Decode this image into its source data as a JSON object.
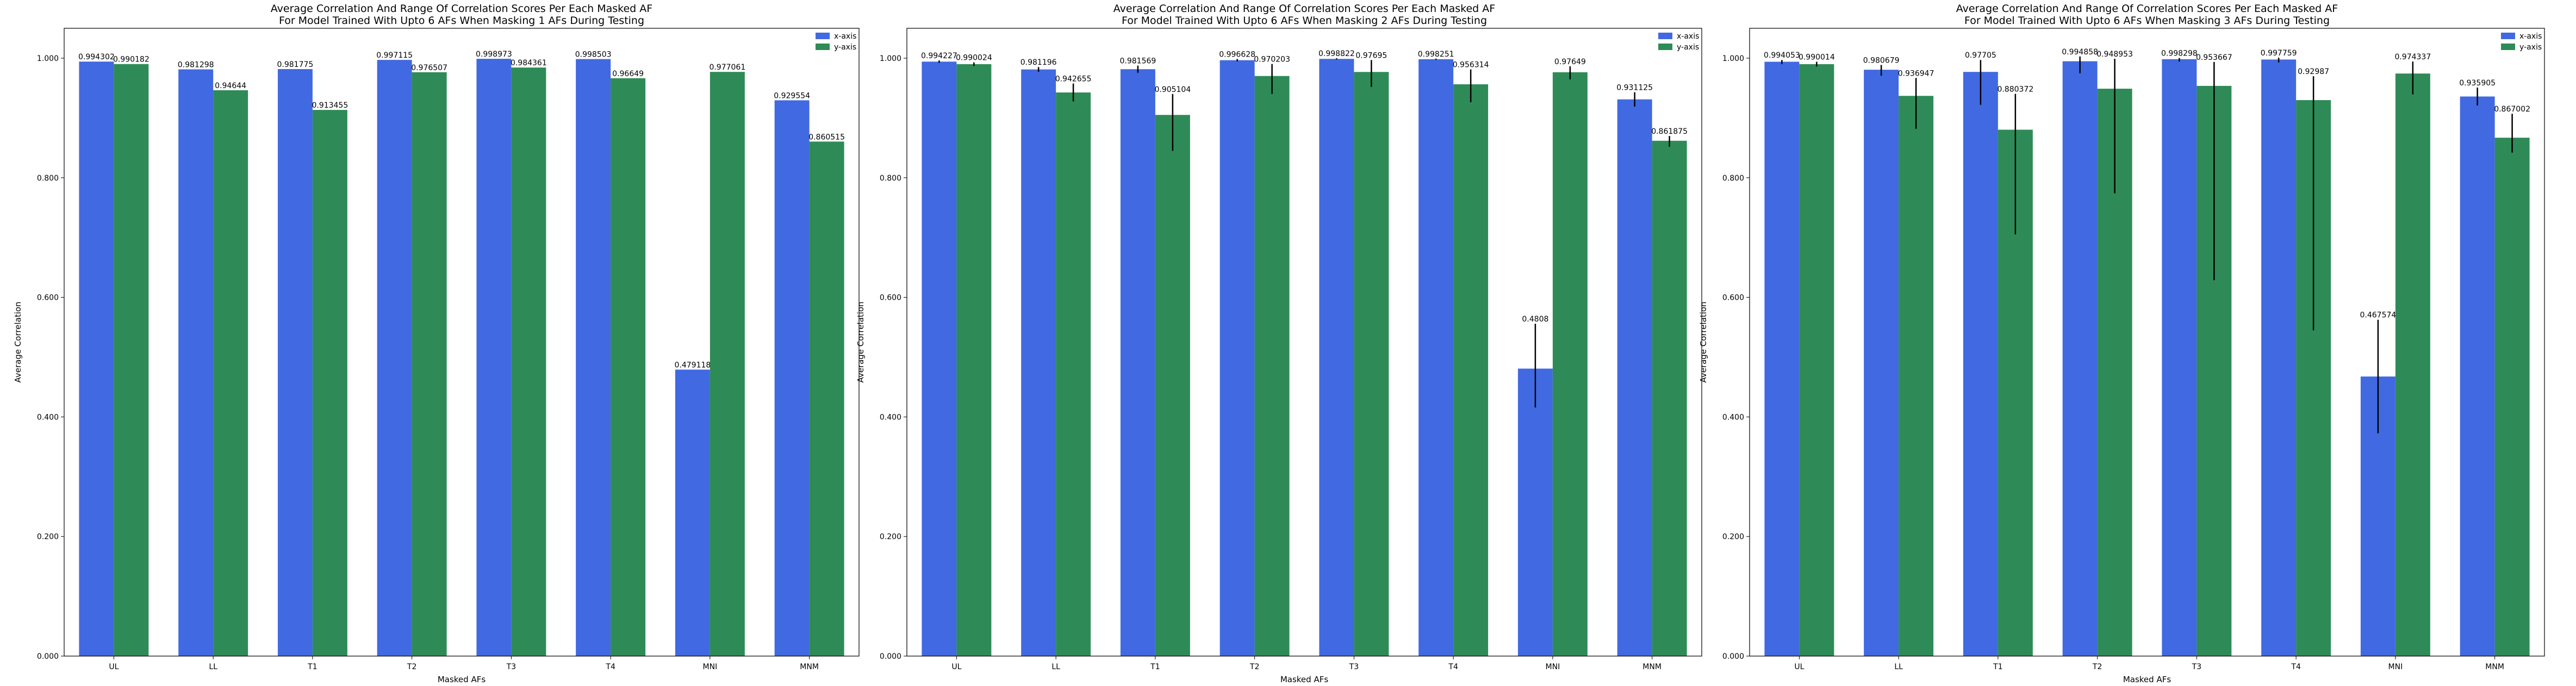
{
  "colors": {
    "x_series": "#4169e1",
    "y_series": "#2e8b57",
    "error_bar": "#000000"
  },
  "chart_data": [
    {
      "type": "bar",
      "title": "Average Correlation And Range Of Correlation Scores Per Each Masked AF",
      "subtitle": "For Model Trained With Upto 6 AFs When Masking 1 AFs During Testing",
      "xlabel": "Masked AFs",
      "ylabel": "Average Correlation",
      "ylim": [
        0,
        1.05
      ],
      "yticks": [
        "0.000",
        "0.200",
        "0.400",
        "0.600",
        "0.800",
        "1.000"
      ],
      "ytick_values": [
        0,
        0.2,
        0.4,
        0.6,
        0.8,
        1.0
      ],
      "legend_position": "top-right",
      "categories": [
        "UL",
        "LL",
        "T1",
        "T2",
        "T3",
        "T4",
        "MNI",
        "MNM"
      ],
      "series": [
        {
          "name": "x-axis",
          "values": [
            0.994302,
            0.981298,
            0.981775,
            0.997115,
            0.998973,
            0.998503,
            0.479118,
            0.929554
          ],
          "labels": [
            "0.994302",
            "0.981298",
            "0.981775",
            "0.997115",
            "0.998973",
            "0.998503",
            "0.479118",
            "0.929554"
          ],
          "err_low": [
            0,
            0,
            0,
            0,
            0,
            0,
            0,
            0
          ],
          "err_high": [
            0,
            0,
            0,
            0,
            0,
            0,
            0,
            0
          ]
        },
        {
          "name": "y-axis",
          "values": [
            0.990182,
            0.94644,
            0.913455,
            0.976507,
            0.984361,
            0.96649,
            0.977061,
            0.860515
          ],
          "labels": [
            "0.990182",
            "0.94644",
            "0.913455",
            "0.976507",
            "0.984361",
            "0.96649",
            "0.977061",
            "0.860515"
          ],
          "err_low": [
            0,
            0,
            0,
            0,
            0,
            0,
            0,
            0
          ],
          "err_high": [
            0,
            0,
            0,
            0,
            0,
            0,
            0,
            0
          ]
        }
      ]
    },
    {
      "type": "bar",
      "title": "Average Correlation And Range Of Correlation Scores Per Each Masked AF",
      "subtitle": "For Model Trained With Upto 6 AFs When Masking 2 AFs During Testing",
      "xlabel": "Masked AFs",
      "ylabel": "Average Correlation",
      "ylim": [
        0,
        1.05
      ],
      "yticks": [
        "0.000",
        "0.200",
        "0.400",
        "0.600",
        "0.800",
        "1.000"
      ],
      "ytick_values": [
        0,
        0.2,
        0.4,
        0.6,
        0.8,
        1.0
      ],
      "legend_position": "top-right",
      "categories": [
        "UL",
        "LL",
        "T1",
        "T2",
        "T3",
        "T4",
        "MNI",
        "MNM"
      ],
      "series": [
        {
          "name": "x-axis",
          "values": [
            0.994227,
            0.981196,
            0.981569,
            0.996628,
            0.998822,
            0.998251,
            0.4808,
            0.931125
          ],
          "labels": [
            "0.994227",
            "0.981196",
            "0.981569",
            "0.996628",
            "0.998822",
            "0.998251",
            "0.4808",
            "0.931125"
          ],
          "err_low": [
            0.002,
            0.004,
            0.006,
            0.002,
            0.001,
            0.001,
            0.065,
            0.012
          ],
          "err_high": [
            0.002,
            0.004,
            0.006,
            0.002,
            0.001,
            0.001,
            0.075,
            0.012
          ]
        },
        {
          "name": "y-axis",
          "values": [
            0.990024,
            0.942655,
            0.905104,
            0.970203,
            0.97695,
            0.956314,
            0.97649,
            0.861875
          ],
          "labels": [
            "0.990024",
            "0.942655",
            "0.905104",
            "0.970203",
            "0.97695",
            "0.956314",
            "0.97649",
            "0.861875"
          ],
          "err_low": [
            0.003,
            0.015,
            0.06,
            0.03,
            0.025,
            0.03,
            0.012,
            0.01
          ],
          "err_high": [
            0.003,
            0.015,
            0.035,
            0.02,
            0.02,
            0.025,
            0.01,
            0.008
          ]
        }
      ]
    },
    {
      "type": "bar",
      "title": "Average Correlation And Range Of Correlation Scores Per Each Masked AF",
      "subtitle": "For Model Trained With Upto 6 AFs When Masking 3 AFs During Testing",
      "xlabel": "Masked AFs",
      "ylabel": "Average Correlation",
      "ylim": [
        0,
        1.05
      ],
      "yticks": [
        "0.000",
        "0.200",
        "0.400",
        "0.600",
        "0.800",
        "1.000"
      ],
      "ytick_values": [
        0,
        0.2,
        0.4,
        0.6,
        0.8,
        1.0
      ],
      "legend_position": "top-right",
      "categories": [
        "UL",
        "LL",
        "T1",
        "T2",
        "T3",
        "T4",
        "MNI",
        "MNM"
      ],
      "series": [
        {
          "name": "x-axis",
          "values": [
            0.994053,
            0.980679,
            0.97705,
            0.994858,
            0.998298,
            0.997759,
            0.467574,
            0.935905
          ],
          "labels": [
            "0.994053",
            "0.980679",
            "0.97705",
            "0.994858",
            "0.998298",
            "0.997759",
            "0.467574",
            "0.935905"
          ],
          "err_low": [
            0.004,
            0.01,
            0.055,
            0.02,
            0.004,
            0.005,
            0.095,
            0.015
          ],
          "err_high": [
            0.003,
            0.008,
            0.02,
            0.008,
            0.002,
            0.003,
            0.095,
            0.015
          ]
        },
        {
          "name": "y-axis",
          "values": [
            0.990014,
            0.936947,
            0.880372,
            0.948953,
            0.953667,
            0.92987,
            0.974337,
            0.867002
          ],
          "labels": [
            "0.990014",
            "0.936947",
            "0.880372",
            "0.948953",
            "0.953667",
            "0.92987",
            "0.974337",
            "0.867002"
          ],
          "err_low": [
            0.004,
            0.055,
            0.175,
            0.175,
            0.325,
            0.385,
            0.035,
            0.025
          ],
          "err_high": [
            0.004,
            0.03,
            0.06,
            0.05,
            0.04,
            0.04,
            0.02,
            0.04
          ]
        }
      ]
    }
  ]
}
